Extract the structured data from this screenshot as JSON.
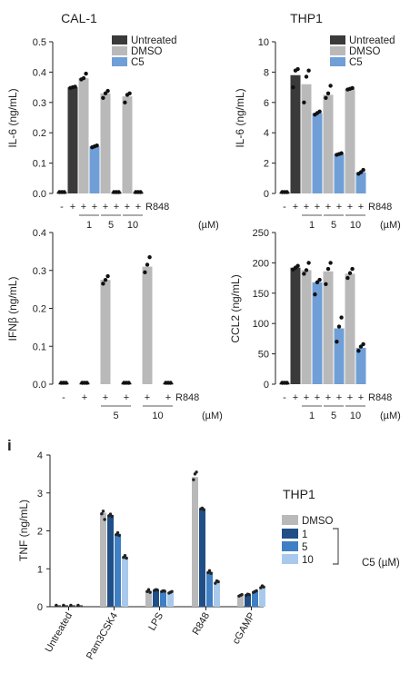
{
  "panel_letter": "i",
  "chart_data": [
    {
      "type": "bar",
      "title": "CAL-1",
      "ylabel": "IL-6 (ng/mL)",
      "ylim": [
        0,
        0.5
      ],
      "yticks": [
        0,
        0.1,
        0.2,
        0.3,
        0.4,
        0.5
      ],
      "yticklabels": [
        "0.0",
        "0.1",
        "0.2",
        "0.3",
        "0.4",
        "0.5"
      ],
      "groups": [
        "Untreated",
        "DMSO",
        "C5"
      ],
      "colors": {
        "Untreated": "#3a3a3a",
        "DMSO": "#b9b9b9",
        "C5": "#6f9fd6"
      },
      "legend": [
        "Untreated",
        "DMSO",
        "C5"
      ],
      "stim_label": "R848",
      "stim_signs": [
        "-",
        "+",
        "+",
        "+",
        "+",
        "+",
        "+",
        "+"
      ],
      "conc_labels": [
        "1",
        "5",
        "10"
      ],
      "conc_unit": "(µM)",
      "bars": [
        {
          "group": "Untreated",
          "value": 0.003,
          "points": [
            0.003,
            0.003,
            0.003
          ]
        },
        {
          "group": "Untreated",
          "value": 0.35,
          "points": [
            0.348,
            0.35,
            0.352
          ]
        },
        {
          "group": "DMSO",
          "value": 0.38,
          "points": [
            0.376,
            0.38,
            0.395
          ]
        },
        {
          "group": "C5",
          "value": 0.155,
          "points": [
            0.152,
            0.155,
            0.158
          ]
        },
        {
          "group": "DMSO",
          "value": 0.33,
          "points": [
            0.315,
            0.33,
            0.338
          ]
        },
        {
          "group": "C5",
          "value": 0.003,
          "points": [
            0.003,
            0.004,
            0.003
          ]
        },
        {
          "group": "DMSO",
          "value": 0.32,
          "points": [
            0.3,
            0.325,
            0.33
          ]
        },
        {
          "group": "C5",
          "value": 0.003,
          "points": [
            0.003,
            0.003,
            0.003
          ]
        }
      ]
    },
    {
      "type": "bar",
      "title": "THP1",
      "ylabel": "IL-6 (ng/mL)",
      "ylim": [
        0,
        10
      ],
      "yticks": [
        0,
        2,
        4,
        6,
        8,
        10
      ],
      "yticklabels": [
        "0",
        "2",
        "4",
        "6",
        "8",
        "10"
      ],
      "groups": [
        "Untreated",
        "DMSO",
        "C5"
      ],
      "colors": {
        "Untreated": "#3a3a3a",
        "DMSO": "#b9b9b9",
        "C5": "#6f9fd6"
      },
      "legend": [
        "Untreated",
        "DMSO",
        "C5"
      ],
      "stim_label": "R848",
      "stim_signs": [
        "-",
        "+",
        "+",
        "+",
        "+",
        "+",
        "+",
        "+"
      ],
      "conc_labels": [
        "1",
        "5",
        "10"
      ],
      "conc_unit": "(µM)",
      "bars": [
        {
          "group": "Untreated",
          "value": 0.05,
          "points": [
            0.05,
            0.05,
            0.05
          ]
        },
        {
          "group": "Untreated",
          "value": 7.8,
          "points": [
            7.0,
            8.1,
            8.2
          ]
        },
        {
          "group": "DMSO",
          "value": 7.2,
          "points": [
            6.0,
            7.7,
            8.1
          ]
        },
        {
          "group": "C5",
          "value": 5.3,
          "points": [
            5.2,
            5.3,
            5.4
          ]
        },
        {
          "group": "DMSO",
          "value": 6.5,
          "points": [
            6.3,
            6.6,
            7.1
          ]
        },
        {
          "group": "C5",
          "value": 2.6,
          "points": [
            2.55,
            2.6,
            2.65
          ]
        },
        {
          "group": "DMSO",
          "value": 6.9,
          "points": [
            6.85,
            6.9,
            6.95
          ]
        },
        {
          "group": "C5",
          "value": 1.4,
          "points": [
            1.3,
            1.4,
            1.55
          ]
        }
      ]
    },
    {
      "type": "bar",
      "title": "",
      "ylabel": "IFNβ (ng/mL)",
      "ylim": [
        0,
        0.4
      ],
      "yticks": [
        0,
        0.1,
        0.2,
        0.3,
        0.4
      ],
      "yticklabels": [
        "0.0",
        "0.1",
        "0.2",
        "0.3",
        "0.4"
      ],
      "groups": [
        "Untreated",
        "DMSO",
        "C5"
      ],
      "colors": {
        "Untreated": "#3a3a3a",
        "DMSO": "#b9b9b9",
        "C5": "#6f9fd6"
      },
      "stim_label": "R848",
      "stim_signs": [
        "-",
        "+",
        "+",
        "+",
        "+",
        "+"
      ],
      "conc_labels": [
        "5",
        "10"
      ],
      "conc_unit": "(µM)",
      "bars": [
        {
          "group": "Untreated",
          "value": 0.0,
          "points": [
            0.0,
            0.0,
            0.0
          ]
        },
        {
          "group": "Untreated",
          "value": 0.0,
          "points": [
            0.0,
            0.0,
            0.0
          ]
        },
        {
          "group": "DMSO",
          "value": 0.275,
          "points": [
            0.265,
            0.275,
            0.285
          ]
        },
        {
          "group": "C5",
          "value": 0.0,
          "points": [
            0.0,
            0.0,
            0.0
          ]
        },
        {
          "group": "DMSO",
          "value": 0.31,
          "points": [
            0.295,
            0.315,
            0.335
          ]
        },
        {
          "group": "C5",
          "value": 0.0,
          "points": [
            0.0,
            0.0,
            0.0
          ]
        }
      ]
    },
    {
      "type": "bar",
      "title": "",
      "ylabel": "CCL2 (ng/mL)",
      "ylim": [
        0,
        250
      ],
      "yticks": [
        0,
        50,
        100,
        150,
        200,
        250
      ],
      "yticklabels": [
        "0",
        "50",
        "100",
        "150",
        "200",
        "250"
      ],
      "groups": [
        "Untreated",
        "DMSO",
        "C5"
      ],
      "colors": {
        "Untreated": "#3a3a3a",
        "DMSO": "#b9b9b9",
        "C5": "#6f9fd6"
      },
      "stim_label": "R848",
      "stim_signs": [
        "-",
        "+",
        "+",
        "+",
        "+",
        "+",
        "+",
        "+"
      ],
      "conc_labels": [
        "1",
        "5",
        "10"
      ],
      "conc_unit": "(µM)",
      "bars": [
        {
          "group": "Untreated",
          "value": 1,
          "points": [
            1,
            1,
            1
          ]
        },
        {
          "group": "Untreated",
          "value": 192,
          "points": [
            189,
            192,
            195
          ]
        },
        {
          "group": "DMSO",
          "value": 188,
          "points": [
            182,
            188,
            200
          ]
        },
        {
          "group": "C5",
          "value": 168,
          "points": [
            148,
            168,
            172
          ]
        },
        {
          "group": "DMSO",
          "value": 186,
          "points": [
            165,
            190,
            200
          ]
        },
        {
          "group": "C5",
          "value": 92,
          "points": [
            70,
            95,
            110
          ]
        },
        {
          "group": "DMSO",
          "value": 182,
          "points": [
            175,
            183,
            190
          ]
        },
        {
          "group": "C5",
          "value": 60,
          "points": [
            55,
            62,
            66
          ]
        }
      ]
    },
    {
      "type": "bar",
      "title": "THP1",
      "ylabel": "TNF (ng/mL)",
      "ylim": [
        0,
        4
      ],
      "yticks": [
        0,
        1,
        2,
        3,
        4
      ],
      "yticklabels": [
        "0",
        "1",
        "2",
        "3",
        "4"
      ],
      "categories": [
        "Untreated",
        "Pam3CSK4",
        "LPS",
        "R848",
        "cGAMP"
      ],
      "series": [
        {
          "name": "DMSO",
          "color": "#b9b9b9",
          "values": [
            0.02,
            2.48,
            0.42,
            3.42,
            0.3
          ]
        },
        {
          "name": "1",
          "color": "#1f4f86",
          "values": [
            0.02,
            2.42,
            0.44,
            2.58,
            0.32
          ]
        },
        {
          "name": "5",
          "color": "#3f7fc4",
          "values": [
            0.02,
            1.92,
            0.41,
            0.92,
            0.4
          ]
        },
        {
          "name": "10",
          "color": "#a9c9ec",
          "values": [
            0.02,
            1.32,
            0.38,
            0.65,
            0.52
          ]
        }
      ],
      "points": [
        [
          [
            0.02
          ],
          [
            2.45,
            2.52,
            2.3
          ],
          [
            0.4,
            0.45,
            0.38
          ],
          [
            3.35,
            3.5,
            3.55
          ],
          [
            0.28,
            0.3,
            0.32
          ]
        ],
        [
          [
            0.02
          ],
          [
            2.4,
            2.44,
            2.38
          ],
          [
            0.43,
            0.45,
            0.44
          ],
          [
            2.58,
            2.6,
            2.56
          ],
          [
            0.3,
            0.33,
            0.32
          ]
        ],
        [
          [
            0.02
          ],
          [
            1.9,
            1.95,
            1.88
          ],
          [
            0.4,
            0.42,
            0.41
          ],
          [
            0.9,
            0.95,
            0.88
          ],
          [
            0.38,
            0.4,
            0.42
          ]
        ],
        [
          [
            0.02
          ],
          [
            1.3,
            1.35,
            1.28
          ],
          [
            0.36,
            0.38,
            0.4
          ],
          [
            0.62,
            0.68,
            0.66
          ],
          [
            0.5,
            0.55,
            0.52
          ]
        ]
      ],
      "legend_title": "THP1",
      "legend_bracket_label": "C5 (µM)"
    }
  ]
}
